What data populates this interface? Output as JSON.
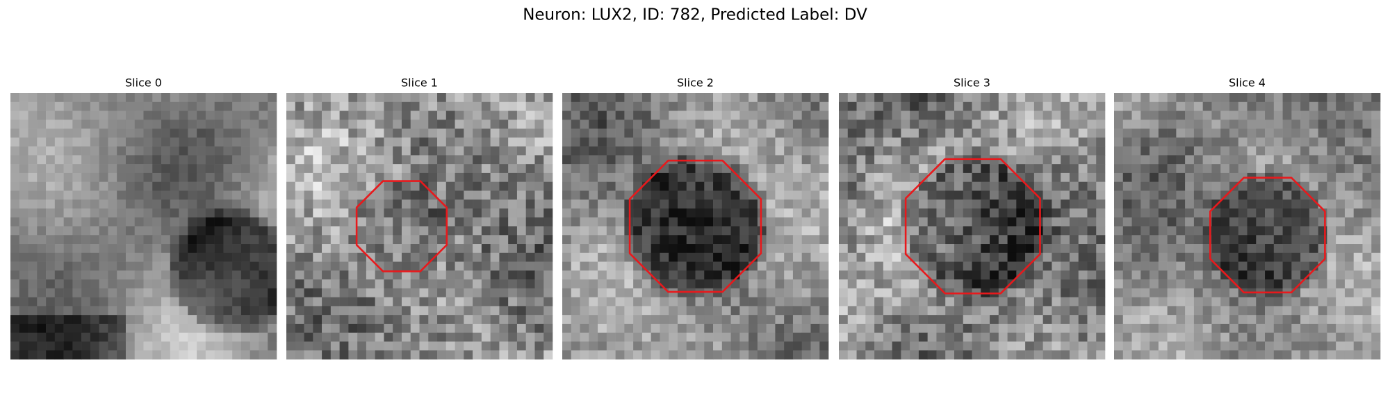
{
  "title": "Neuron: LUX2, ID: 782, Predicted Label: DV",
  "panels": [
    {
      "title": "Slice 0"
    },
    {
      "title": "Slice 1"
    },
    {
      "title": "Slice 2"
    },
    {
      "title": "Slice 3"
    },
    {
      "title": "Slice 4"
    }
  ]
}
